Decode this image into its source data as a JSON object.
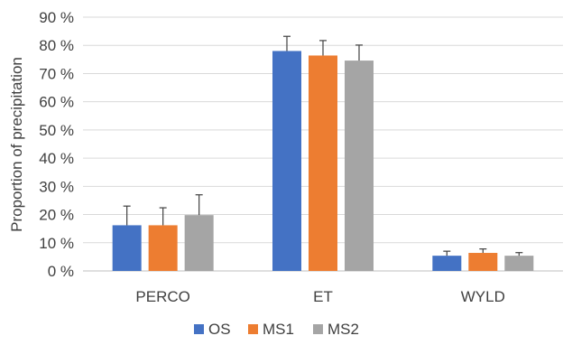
{
  "chart_data": {
    "type": "bar",
    "categories": [
      "PERCO",
      "ET",
      "WYLD"
    ],
    "series": [
      {
        "name": "OS",
        "values": [
          16.2,
          78.0,
          5.4
        ],
        "errors": [
          6.8,
          5.2,
          1.6
        ],
        "color": "#4472C4"
      },
      {
        "name": "MS1",
        "values": [
          16.2,
          76.4,
          6.4
        ],
        "errors": [
          6.2,
          5.3,
          1.4
        ],
        "color": "#ED7D31"
      },
      {
        "name": "MS2",
        "values": [
          19.8,
          74.6,
          5.4
        ],
        "errors": [
          7.2,
          5.5,
          1.1
        ],
        "color": "#A5A5A5"
      }
    ],
    "ylabel": "Proportion of precipitation",
    "ylim": [
      0,
      90
    ],
    "yticks": [
      0,
      10,
      20,
      30,
      40,
      50,
      60,
      70,
      80,
      90
    ],
    "ytick_labels": [
      "0 %",
      "10 %",
      "20 %",
      "30 %",
      "40 %",
      "50 %",
      "60 %",
      "70 %",
      "80 %",
      "90 %"
    ],
    "grid": true,
    "legend": "bottom",
    "gridline_color": "#d9d9d9",
    "axis_color": "#bfbfbf",
    "errorbar_color": "#404040"
  }
}
